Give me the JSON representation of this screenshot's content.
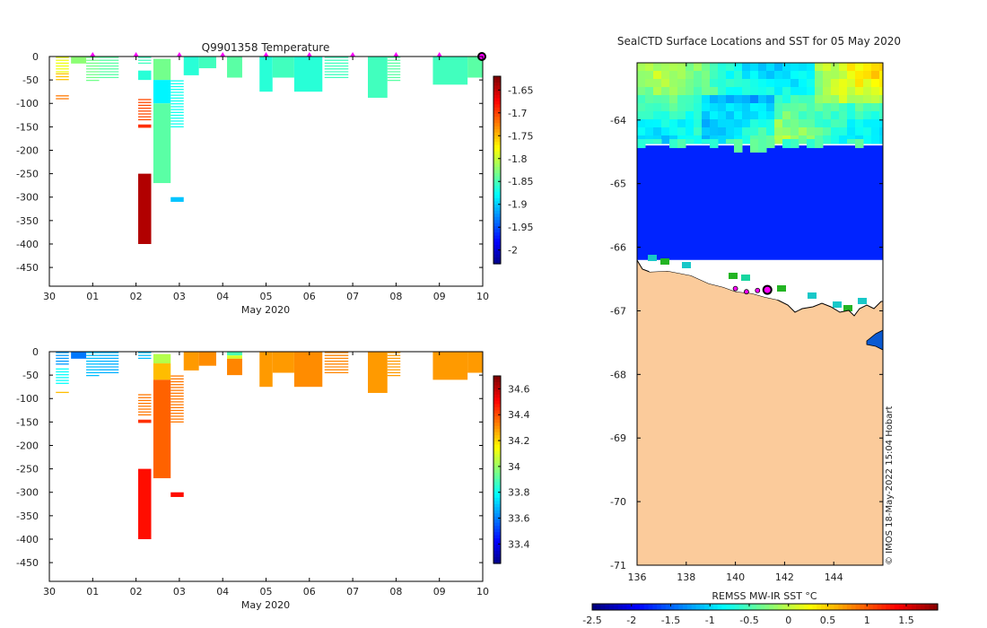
{
  "temperature_panel": {
    "title": "Q9901358  Temperature",
    "xlabel": "May 2020",
    "xticks": [
      "30",
      "01",
      "02",
      "03",
      "04",
      "05",
      "06",
      "07",
      "08",
      "09",
      "10"
    ],
    "yticks": [
      "0",
      "-50",
      "-100",
      "-150",
      "-200",
      "-250",
      "-300",
      "-350",
      "-400",
      "-450"
    ],
    "colorbar_ticks": [
      "-1.65",
      "-1.7",
      "-1.75",
      "-1.8",
      "-1.85",
      "-1.9",
      "-1.95",
      "-2"
    ]
  },
  "salinity_panel": {
    "xlabel": "May 2020",
    "xticks": [
      "30",
      "01",
      "02",
      "03",
      "04",
      "05",
      "06",
      "07",
      "08",
      "09",
      "10"
    ],
    "yticks": [
      "0",
      "-50",
      "-100",
      "-150",
      "-200",
      "-250",
      "-300",
      "-350",
      "-400",
      "-450"
    ],
    "colorbar_ticks": [
      "34.6",
      "34.4",
      "34.2",
      "34",
      "33.8",
      "33.6",
      "33.4"
    ]
  },
  "map_panel": {
    "title": "SealCTD Surface Locations and SST for 05 May 2020",
    "xticks": [
      "136",
      "138",
      "140",
      "142",
      "144"
    ],
    "yticks": [
      "-64",
      "-65",
      "-66",
      "-67",
      "-68",
      "-69",
      "-70",
      "-71"
    ],
    "colorbar_label": "REMSS MW-IR SST °C",
    "colorbar_ticks": [
      "-2.5",
      "-2",
      "-1.5",
      "-1",
      "-0.5",
      "0",
      "0.5",
      "1",
      "1.5"
    ],
    "credit": "© IMOS 18-May-2022 15:04 Hobart"
  },
  "colors": {
    "land": "#fbcb9b",
    "cold_ocean": "#0a5ad2",
    "marker": "#ff00ff"
  },
  "chart_data": [
    {
      "type": "heatmap",
      "title": "Q9901358  Temperature",
      "xlabel": "May 2020",
      "ylabel": "",
      "x_unit": "days since 30 Apr 2020",
      "xlim": [
        0,
        10
      ],
      "ylim": [
        -490,
        0
      ],
      "clim": [
        -2.03,
        -1.62
      ],
      "surface_markers_day": [
        1,
        2,
        3,
        4,
        5,
        6,
        7,
        8,
        9
      ],
      "last_marker_day": 10,
      "profiles": [
        {
          "x": [
            0.15,
            0.45
          ],
          "top": 0,
          "bottom": -35,
          "value": -1.78,
          "lines": true
        },
        {
          "x": [
            0.15,
            0.45
          ],
          "top": -35,
          "bottom": -55,
          "value": -1.75,
          "lines": true
        },
        {
          "x": [
            0.15,
            0.45
          ],
          "top": -82,
          "bottom": -92,
          "value": -1.72,
          "lines": true
        },
        {
          "x": [
            0.5,
            0.85
          ],
          "top": 0,
          "bottom": -15,
          "value": -1.82,
          "lines": false
        },
        {
          "x": [
            0.85,
            1.15
          ],
          "top": 0,
          "bottom": -55,
          "value": -1.83,
          "lines": true
        },
        {
          "x": [
            1.15,
            1.6
          ],
          "top": 0,
          "bottom": -50,
          "value": -1.84,
          "lines": true
        },
        {
          "x": [
            2.05,
            2.35
          ],
          "top": 0,
          "bottom": -15,
          "value": -1.85,
          "lines": true
        },
        {
          "x": [
            2.05,
            2.35
          ],
          "top": -30,
          "bottom": -50,
          "value": -1.86,
          "lines": false
        },
        {
          "x": [
            2.05,
            2.35
          ],
          "top": -90,
          "bottom": -140,
          "value": -1.7,
          "lines": true
        },
        {
          "x": [
            2.05,
            2.35
          ],
          "top": -145,
          "bottom": -152,
          "value": -1.69,
          "lines": false
        },
        {
          "x": [
            2.05,
            2.35
          ],
          "top": -250,
          "bottom": -400,
          "value": -1.64,
          "lines": false
        },
        {
          "x": [
            2.4,
            2.8
          ],
          "top": -5,
          "bottom": -50,
          "value": -1.83,
          "lines": false
        },
        {
          "x": [
            2.4,
            2.8
          ],
          "top": -50,
          "bottom": -100,
          "value": -1.88,
          "lines": false
        },
        {
          "x": [
            2.4,
            2.8
          ],
          "top": -100,
          "bottom": -270,
          "value": -1.84,
          "lines": false
        },
        {
          "x": [
            2.8,
            3.1
          ],
          "top": -50,
          "bottom": -150,
          "value": -1.87,
          "lines": true
        },
        {
          "x": [
            2.8,
            3.1
          ],
          "top": -300,
          "bottom": -310,
          "value": -1.9,
          "lines": false
        },
        {
          "x": [
            3.1,
            3.45
          ],
          "top": 0,
          "bottom": -40,
          "value": -1.86,
          "lines": false
        },
        {
          "x": [
            3.45,
            3.85
          ],
          "top": 0,
          "bottom": -25,
          "value": -1.85,
          "lines": false
        },
        {
          "x": [
            4.1,
            4.45
          ],
          "top": 0,
          "bottom": -45,
          "value": -1.84,
          "lines": false
        },
        {
          "x": [
            4.85,
            5.15
          ],
          "top": 0,
          "bottom": -75,
          "value": -1.86,
          "lines": false
        },
        {
          "x": [
            5.15,
            5.65
          ],
          "top": 0,
          "bottom": -45,
          "value": -1.85,
          "lines": false
        },
        {
          "x": [
            5.65,
            6.3
          ],
          "top": 0,
          "bottom": -75,
          "value": -1.86,
          "lines": false
        },
        {
          "x": [
            6.35,
            6.9
          ],
          "top": 0,
          "bottom": -50,
          "value": -1.85,
          "lines": true
        },
        {
          "x": [
            7.35,
            7.8
          ],
          "top": 0,
          "bottom": -88,
          "value": -1.85,
          "lines": false
        },
        {
          "x": [
            7.8,
            8.1
          ],
          "top": 0,
          "bottom": -55,
          "value": -1.84,
          "lines": true
        },
        {
          "x": [
            8.85,
            9.65
          ],
          "top": 0,
          "bottom": -60,
          "value": -1.85,
          "lines": false
        },
        {
          "x": [
            9.65,
            10.0
          ],
          "top": 0,
          "bottom": -45,
          "value": -1.84,
          "lines": false
        }
      ]
    },
    {
      "type": "heatmap",
      "title": "",
      "xlabel": "May 2020",
      "ylabel": "",
      "x_unit": "days since 30 Apr 2020",
      "xlim": [
        0,
        10
      ],
      "ylim": [
        -490,
        0
      ],
      "clim": [
        33.25,
        34.7
      ],
      "profiles": [
        {
          "x": [
            0.15,
            0.45
          ],
          "top": 0,
          "bottom": -30,
          "value": 33.65,
          "lines": true
        },
        {
          "x": [
            0.15,
            0.45
          ],
          "top": -35,
          "bottom": -70,
          "value": 33.8,
          "lines": true
        },
        {
          "x": [
            0.15,
            0.45
          ],
          "top": -85,
          "bottom": -92,
          "value": 34.25,
          "lines": true
        },
        {
          "x": [
            0.5,
            0.85
          ],
          "top": 0,
          "bottom": -15,
          "value": 33.6,
          "lines": false
        },
        {
          "x": [
            0.85,
            1.15
          ],
          "top": 0,
          "bottom": -55,
          "value": 33.7,
          "lines": true
        },
        {
          "x": [
            1.15,
            1.6
          ],
          "top": 0,
          "bottom": -50,
          "value": 33.68,
          "lines": true
        },
        {
          "x": [
            2.05,
            2.35
          ],
          "top": 0,
          "bottom": -20,
          "value": 33.7,
          "lines": true
        },
        {
          "x": [
            2.05,
            2.35
          ],
          "top": -90,
          "bottom": -140,
          "value": 34.35,
          "lines": true
        },
        {
          "x": [
            2.05,
            2.35
          ],
          "top": -145,
          "bottom": -152,
          "value": 34.45,
          "lines": false
        },
        {
          "x": [
            2.05,
            2.35
          ],
          "top": -250,
          "bottom": -400,
          "value": 34.5,
          "lines": false
        },
        {
          "x": [
            2.4,
            2.8
          ],
          "top": -5,
          "bottom": -25,
          "value": 34.05,
          "lines": false
        },
        {
          "x": [
            2.4,
            2.8
          ],
          "top": -25,
          "bottom": -60,
          "value": 34.25,
          "lines": false
        },
        {
          "x": [
            2.4,
            2.8
          ],
          "top": -60,
          "bottom": -270,
          "value": 34.38,
          "lines": false
        },
        {
          "x": [
            2.8,
            3.1
          ],
          "top": -50,
          "bottom": -150,
          "value": 34.35,
          "lines": true
        },
        {
          "x": [
            2.8,
            3.1
          ],
          "top": -300,
          "bottom": -310,
          "value": 34.5,
          "lines": false
        },
        {
          "x": [
            3.1,
            3.45
          ],
          "top": 0,
          "bottom": -40,
          "value": 34.3,
          "lines": false
        },
        {
          "x": [
            3.45,
            3.85
          ],
          "top": 0,
          "bottom": -30,
          "value": 34.32,
          "lines": false
        },
        {
          "x": [
            4.1,
            4.45
          ],
          "top": 0,
          "bottom": -8,
          "value": 33.9,
          "lines": false
        },
        {
          "x": [
            4.1,
            4.45
          ],
          "top": -8,
          "bottom": -15,
          "value": 34.1,
          "lines": false
        },
        {
          "x": [
            4.1,
            4.45
          ],
          "top": -15,
          "bottom": -50,
          "value": 34.33,
          "lines": false
        },
        {
          "x": [
            4.85,
            5.15
          ],
          "top": 0,
          "bottom": -75,
          "value": 34.3,
          "lines": false
        },
        {
          "x": [
            5.15,
            5.65
          ],
          "top": 0,
          "bottom": -45,
          "value": 34.3,
          "lines": false
        },
        {
          "x": [
            5.65,
            6.3
          ],
          "top": 0,
          "bottom": -75,
          "value": 34.32,
          "lines": false
        },
        {
          "x": [
            6.35,
            6.9
          ],
          "top": 0,
          "bottom": -50,
          "value": 34.33,
          "lines": true
        },
        {
          "x": [
            7.35,
            7.8
          ],
          "top": 0,
          "bottom": -88,
          "value": 34.3,
          "lines": false
        },
        {
          "x": [
            7.8,
            8.1
          ],
          "top": 0,
          "bottom": -55,
          "value": 34.3,
          "lines": true
        },
        {
          "x": [
            8.85,
            9.65
          ],
          "top": 0,
          "bottom": -60,
          "value": 34.3,
          "lines": false
        },
        {
          "x": [
            9.65,
            10.0
          ],
          "top": 0,
          "bottom": -45,
          "value": 34.3,
          "lines": false
        }
      ]
    },
    {
      "type": "heatmap",
      "title": "SealCTD Surface Locations and SST for 05 May 2020",
      "xlabel": "",
      "ylabel": "",
      "xlim": [
        136,
        146
      ],
      "ylim": [
        -71,
        -63.1
      ],
      "clim": [
        -2.5,
        1.9
      ],
      "colorbar_label": "REMSS MW-IR SST °C",
      "open_water_sst": [
        {
          "lon": [
            136,
            146
          ],
          "lat": [
            -63.1,
            -64.4
          ],
          "value": -0.6,
          "note": "warm band, patchy -1.1 to 0.6"
        },
        {
          "lon": [
            136,
            146
          ],
          "lat": [
            -64.4,
            -66.2
          ],
          "value": -1.8
        }
      ],
      "seal_positions": [
        {
          "lon": 140.0,
          "lat": -66.65
        },
        {
          "lon": 140.45,
          "lat": -66.7
        },
        {
          "lon": 140.9,
          "lat": -66.68
        },
        {
          "lon": 141.3,
          "lat": -66.7
        },
        {
          "lon": 141.35,
          "lat": -66.66
        }
      ],
      "latest_position": {
        "lon": 141.3,
        "lat": -66.67
      }
    }
  ]
}
